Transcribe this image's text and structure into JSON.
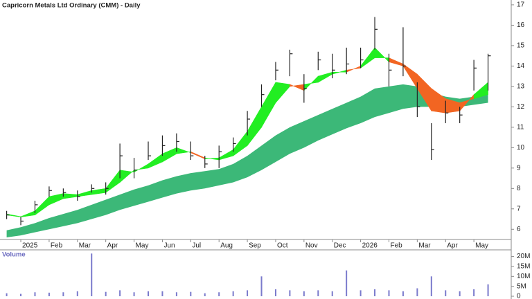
{
  "chart_data": [
    {
      "type": "candlestick",
      "title": "Capricorn Metals Ltd Ordinary (CMM) - Daily",
      "categories": [
        null,
        "2025",
        null,
        "Feb",
        null,
        "Mar",
        null,
        "Apr",
        null,
        "May",
        null,
        "Jun",
        null,
        "Jul",
        null,
        "Aug",
        null,
        "Sep",
        null,
        "Oct",
        null,
        "Nov",
        null,
        "Dec",
        null,
        "2026",
        null,
        "Feb",
        null,
        "Mar",
        null,
        "Apr",
        null,
        "May",
        null
      ],
      "high": [
        6.9,
        6.6,
        7.4,
        8.1,
        8.0,
        7.9,
        8.2,
        8.3,
        10.2,
        9.5,
        10.3,
        10.6,
        10.7,
        10.3,
        9.6,
        10.1,
        10.5,
        11.8,
        13.1,
        14.2,
        14.8,
        13.6,
        14.7,
        14.6,
        14.9,
        14.9,
        16.4,
        14.6,
        15.9,
        13.2,
        11.2,
        12.3,
        12.0,
        14.3,
        14.6
      ],
      "low": [
        6.5,
        6.2,
        6.8,
        7.6,
        7.6,
        7.4,
        7.8,
        7.7,
        8.5,
        8.5,
        9.4,
        9.6,
        9.8,
        9.4,
        9.0,
        9.0,
        9.8,
        10.6,
        12.0,
        13.3,
        13.5,
        12.2,
        13.8,
        13.4,
        13.6,
        13.9,
        14.8,
        13.0,
        13.5,
        11.5,
        9.4,
        11.2,
        11.2,
        12.8,
        12.8
      ],
      "close": [
        6.7,
        6.4,
        7.2,
        7.9,
        7.8,
        7.6,
        8.0,
        8.0,
        9.6,
        8.9,
        9.6,
        10.1,
        10.3,
        9.6,
        9.2,
        9.8,
        10.2,
        11.4,
        12.6,
        13.8,
        14.6,
        12.9,
        14.3,
        13.8,
        14.1,
        14.3,
        15.8,
        13.8,
        14.0,
        12.0,
        9.9,
        11.7,
        11.6,
        13.9,
        14.5
      ],
      "candle_color": "#222222",
      "fast_ribbon": {
        "a": [
          6.75,
          6.62,
          6.9,
          7.6,
          7.75,
          7.7,
          7.9,
          8.0,
          8.9,
          8.8,
          9.2,
          9.7,
          10.0,
          9.75,
          9.45,
          9.5,
          9.9,
          10.8,
          12.0,
          13.2,
          13.1,
          12.8,
          13.5,
          13.7,
          13.7,
          14.0,
          14.9,
          14.2,
          14.0,
          12.9,
          11.8,
          11.7,
          11.8,
          12.6,
          13.2
        ],
        "b": [
          6.7,
          6.6,
          6.7,
          7.2,
          7.5,
          7.6,
          7.7,
          7.8,
          8.3,
          8.9,
          9.0,
          9.3,
          9.7,
          9.8,
          9.5,
          9.4,
          9.6,
          10.1,
          11.0,
          12.2,
          13.0,
          13.1,
          13.2,
          13.6,
          13.8,
          13.9,
          14.4,
          14.4,
          14.1,
          13.6,
          12.9,
          12.4,
          12.2,
          12.4,
          12.6
        ],
        "up_color": "#22ee22",
        "down_color": "#f26522"
      },
      "slow_ribbon": {
        "upper": [
          5.95,
          6.1,
          6.3,
          6.55,
          6.75,
          6.95,
          7.2,
          7.45,
          7.7,
          7.95,
          8.15,
          8.4,
          8.6,
          8.75,
          8.85,
          8.95,
          9.2,
          9.6,
          10.1,
          10.6,
          11.0,
          11.3,
          11.6,
          11.9,
          12.2,
          12.5,
          12.9,
          13.0,
          13.1,
          13.0,
          12.7,
          12.5,
          12.4,
          12.5,
          12.6
        ],
        "lower": [
          5.6,
          5.7,
          5.85,
          6.0,
          6.15,
          6.3,
          6.5,
          6.7,
          6.95,
          7.15,
          7.35,
          7.55,
          7.75,
          7.9,
          8.0,
          8.15,
          8.3,
          8.55,
          8.9,
          9.3,
          9.7,
          10.0,
          10.35,
          10.65,
          10.95,
          11.2,
          11.5,
          11.7,
          11.9,
          12.0,
          12.0,
          12.0,
          12.0,
          12.1,
          12.2
        ],
        "color": "#3cb878"
      },
      "ylim": [
        5.5,
        17.1
      ],
      "yticks": [
        6,
        7,
        8,
        9,
        10,
        11,
        12,
        13,
        14,
        15,
        16,
        17
      ]
    },
    {
      "type": "bar",
      "title": "Volume",
      "values": [
        1500000,
        1200000,
        2000000,
        1800000,
        2000000,
        2500000,
        21500000,
        2200000,
        3000000,
        2000000,
        2500000,
        2500000,
        2000000,
        2200000,
        1500000,
        2000000,
        2500000,
        3000000,
        10000000,
        3500000,
        3000000,
        2500000,
        3000000,
        2500000,
        13000000,
        3000000,
        3500000,
        3000000,
        2500000,
        4000000,
        10000000,
        3000000,
        2500000,
        3500000,
        6000000
      ],
      "color": "#7a7acc",
      "ylim": [
        0,
        23000000
      ],
      "yticks": [
        0,
        {
          "value": 5000000,
          "label": "5M"
        },
        {
          "value": 10000000,
          "label": "10M"
        },
        {
          "value": 15000000,
          "label": "15M"
        },
        {
          "value": 20000000,
          "label": "20M"
        }
      ]
    }
  ]
}
